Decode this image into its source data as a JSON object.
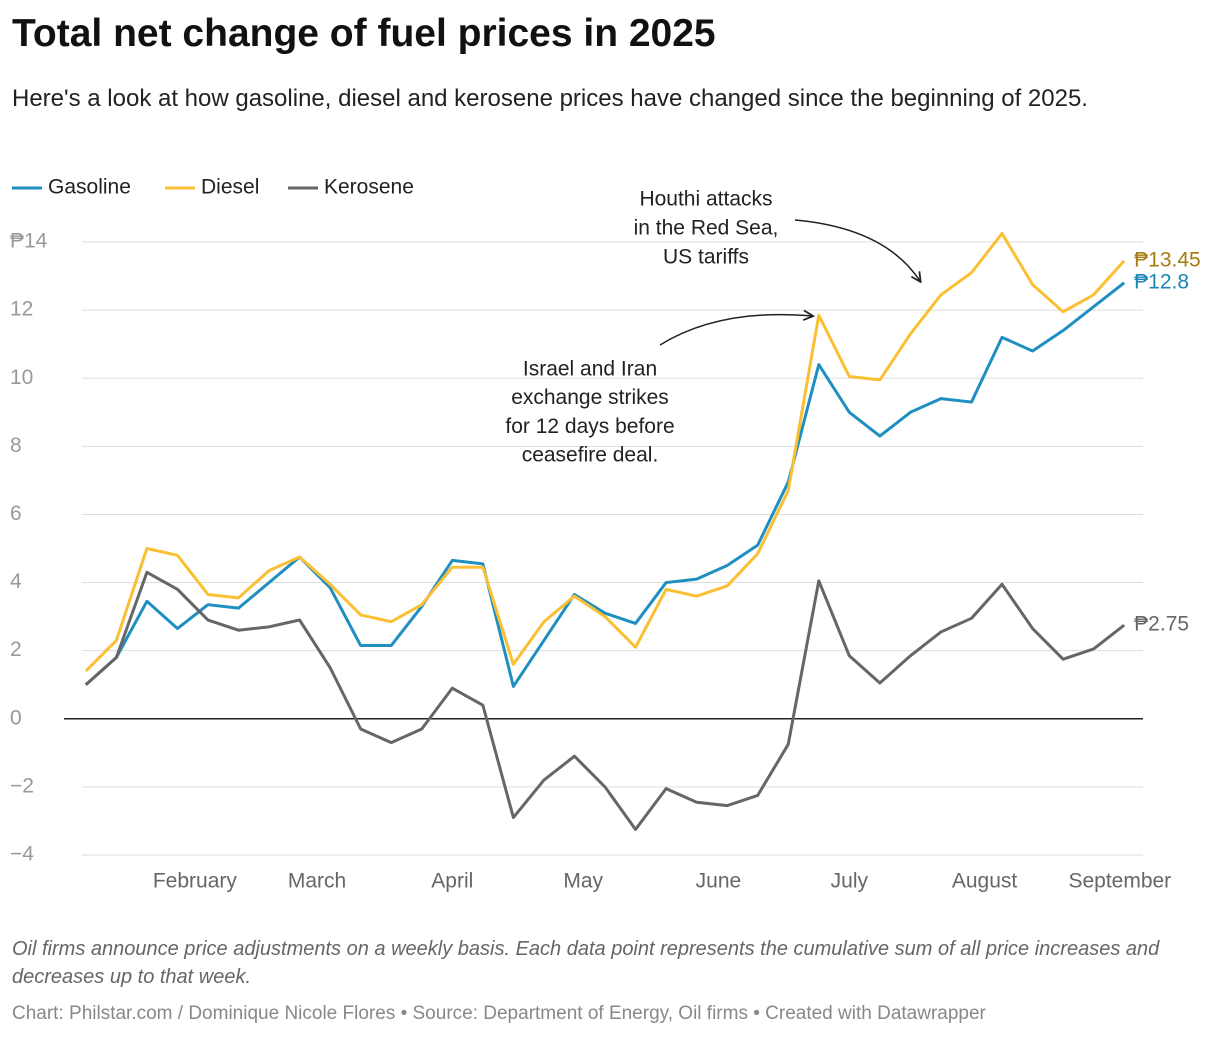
{
  "chart_data": {
    "type": "line",
    "title": "Total net change of fuel prices in 2025",
    "subtitle": "Here's a look at how gasoline, diesel and kerosene prices have changed since the beginning of 2025.",
    "x": [
      7,
      14,
      21,
      28,
      35,
      42,
      49,
      56,
      63,
      70,
      77,
      84,
      91,
      98,
      105,
      112,
      119,
      126,
      133,
      140,
      147,
      154,
      161,
      168,
      175,
      182,
      189,
      196,
      203,
      210,
      217,
      224,
      231,
      238,
      245
    ],
    "xlim": [
      2,
      250
    ],
    "xticks": [
      {
        "value": 32,
        "label": "February"
      },
      {
        "value": 60,
        "label": "March"
      },
      {
        "value": 91,
        "label": "April"
      },
      {
        "value": 121,
        "label": "May"
      },
      {
        "value": 152,
        "label": "June"
      },
      {
        "value": 182,
        "label": "July"
      },
      {
        "value": 213,
        "label": "August"
      },
      {
        "value": 244,
        "label": "September"
      }
    ],
    "ylim": [
      -4,
      14
    ],
    "yticks": [
      {
        "value": -4,
        "label": "−4"
      },
      {
        "value": -2,
        "label": "−2"
      },
      0,
      2,
      4,
      6,
      8,
      10,
      12,
      {
        "value": 14,
        "label": "₱14"
      }
    ],
    "grid": true,
    "legend": "top-left",
    "series": [
      {
        "name": "Gasoline",
        "color": "#1f8fc1",
        "label_color": "#1a86b5",
        "values": [
          1.0,
          1.8,
          3.45,
          2.65,
          3.35,
          3.25,
          4.0,
          4.75,
          3.85,
          2.15,
          2.15,
          3.3,
          4.65,
          4.55,
          0.95,
          2.3,
          3.65,
          3.1,
          2.8,
          4.0,
          4.1,
          4.5,
          5.1,
          6.95,
          10.4,
          9.0,
          8.3,
          9.0,
          9.4,
          9.3,
          11.2,
          10.8,
          11.4,
          12.1,
          12.8
        ],
        "value_labels": [
          null,
          null,
          null,
          null,
          null,
          null,
          null,
          null,
          null,
          null,
          null,
          null,
          null,
          null,
          null,
          null,
          null,
          null,
          null,
          null,
          null,
          null,
          null,
          null,
          null,
          null,
          null,
          null,
          null,
          null,
          null,
          null,
          null,
          null,
          "₱12.8"
        ]
      },
      {
        "name": "Diesel",
        "color": "#fbbf33",
        "label_color": "#a57d12",
        "values": [
          1.4,
          2.3,
          5.0,
          4.8,
          3.65,
          3.55,
          4.35,
          4.75,
          3.95,
          3.05,
          2.85,
          3.35,
          4.45,
          4.45,
          1.6,
          2.85,
          3.6,
          3.0,
          2.1,
          3.8,
          3.6,
          3.9,
          4.85,
          6.7,
          11.85,
          10.05,
          9.95,
          11.3,
          12.45,
          13.1,
          14.25,
          12.75,
          11.95,
          12.45,
          13.45
        ],
        "value_labels": [
          null,
          null,
          null,
          null,
          null,
          null,
          null,
          null,
          null,
          null,
          null,
          null,
          null,
          null,
          null,
          null,
          null,
          null,
          null,
          null,
          null,
          null,
          null,
          null,
          null,
          null,
          null,
          null,
          null,
          null,
          null,
          null,
          null,
          null,
          "₱13.45"
        ]
      },
      {
        "name": "Kerosene",
        "color": "#666666",
        "label_color": "#666666",
        "values": [
          1.0,
          1.8,
          4.3,
          3.8,
          2.9,
          2.6,
          2.7,
          2.9,
          1.5,
          -0.3,
          -0.7,
          -0.3,
          0.9,
          0.4,
          -2.9,
          -1.8,
          -1.1,
          -2.0,
          -3.25,
          -2.05,
          -2.45,
          -2.55,
          -2.25,
          -0.75,
          4.05,
          1.85,
          1.05,
          1.85,
          2.55,
          2.95,
          3.95,
          2.65,
          1.75,
          2.05,
          2.75
        ],
        "value_labels": [
          null,
          null,
          null,
          null,
          null,
          null,
          null,
          null,
          null,
          null,
          null,
          null,
          null,
          null,
          null,
          null,
          null,
          null,
          null,
          null,
          null,
          null,
          null,
          null,
          null,
          null,
          null,
          null,
          null,
          null,
          null,
          null,
          null,
          null,
          "₱2.75"
        ]
      }
    ],
    "annotations": [
      {
        "lines": [
          "Houthi attacks",
          "in the Red Sea,",
          "US tariffs"
        ]
      },
      {
        "lines": [
          "Israel and Iran",
          "exchange strikes",
          "for 12 days before",
          "ceasefire deal."
        ]
      }
    ],
    "note": "Oil firms announce price adjustments on a weekly basis. Each data point represents the cumulative sum of all price increases and decreases up to that week.",
    "credit": "Chart: Philstar.com / Dominique Nicole Flores • Source: Department of Energy, Oil firms • Created with Datawrapper"
  }
}
